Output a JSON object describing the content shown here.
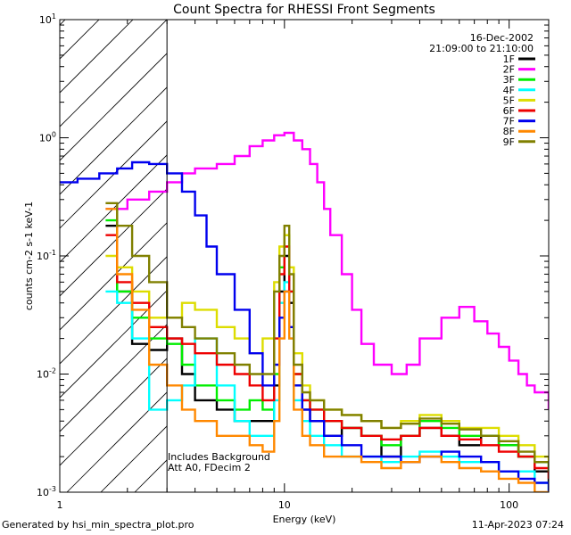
{
  "chart_data": {
    "type": "line",
    "title": "Count Spectra for RHESSI Front Segments",
    "xlabel": "Energy (keV)",
    "ylabel": "counts cm-2 s-1 keV-1",
    "xscale": "log",
    "yscale": "log",
    "xlim": [
      1,
      150
    ],
    "ylim": [
      0.001,
      10
    ],
    "x_ticks": [
      {
        "value": 1,
        "label": "1"
      },
      {
        "value": 10,
        "label": "10"
      },
      {
        "value": 100,
        "label": "100"
      }
    ],
    "y_ticks": [
      {
        "value": 0.001,
        "base": "10",
        "exp": "-3"
      },
      {
        "value": 0.01,
        "base": "10",
        "exp": "-2"
      },
      {
        "value": 0.1,
        "base": "10",
        "exp": "-1"
      },
      {
        "value": 1,
        "base": "10",
        "exp": "0"
      },
      {
        "value": 10,
        "base": "10",
        "exp": "1"
      }
    ],
    "hatched_region_keV": [
      1,
      3
    ],
    "date": "16-Dec-2002",
    "time_range": "21:09:00 to 21:10:00",
    "annotation_lines": [
      "Includes Background",
      "Att A0, FDecim 2"
    ],
    "legend_position": "top-right",
    "series": [
      {
        "name": "1F",
        "color": "#000000",
        "x": [
          1.6,
          1.8,
          2.1,
          2.5,
          3,
          3.5,
          4,
          5,
          6,
          7,
          8,
          9,
          9.5,
          10,
          10.5,
          11,
          12,
          13,
          15,
          18,
          22,
          27,
          33,
          40,
          50,
          60,
          75,
          90,
          110,
          130,
          150
        ],
        "y": [
          0.18,
          0.05,
          0.018,
          0.016,
          0.02,
          0.01,
          0.006,
          0.005,
          0.004,
          0.004,
          0.004,
          0.008,
          0.05,
          0.1,
          0.04,
          0.008,
          0.005,
          0.004,
          0.003,
          0.0035,
          0.003,
          0.002,
          0.003,
          0.0035,
          0.003,
          0.0025,
          0.003,
          0.0025,
          0.002,
          0.0015,
          0.0012
        ]
      },
      {
        "name": "2F",
        "color": "#ff00ff",
        "x": [
          1.6,
          2,
          2.5,
          3,
          3.5,
          4,
          5,
          6,
          7,
          8,
          9,
          10,
          11,
          12,
          13,
          14,
          15,
          16,
          18,
          20,
          22,
          25,
          30,
          35,
          40,
          50,
          60,
          70,
          80,
          90,
          100,
          110,
          120,
          130,
          150
        ],
        "y": [
          0.25,
          0.3,
          0.35,
          0.42,
          0.5,
          0.55,
          0.6,
          0.7,
          0.85,
          0.95,
          1.05,
          1.1,
          0.95,
          0.8,
          0.6,
          0.42,
          0.25,
          0.15,
          0.07,
          0.035,
          0.018,
          0.012,
          0.01,
          0.012,
          0.02,
          0.03,
          0.037,
          0.028,
          0.022,
          0.017,
          0.013,
          0.01,
          0.008,
          0.007,
          0.005
        ]
      },
      {
        "name": "3F",
        "color": "#00ee00",
        "x": [
          1.6,
          1.8,
          2.1,
          2.5,
          3,
          3.5,
          4,
          5,
          6,
          7,
          8,
          9,
          9.5,
          10,
          10.5,
          11,
          12,
          13,
          15,
          18,
          22,
          27,
          33,
          40,
          50,
          60,
          75,
          90,
          110,
          130,
          150
        ],
        "y": [
          0.2,
          0.05,
          0.03,
          0.02,
          0.018,
          0.012,
          0.008,
          0.006,
          0.005,
          0.006,
          0.005,
          0.01,
          0.08,
          0.15,
          0.05,
          0.01,
          0.006,
          0.005,
          0.004,
          0.0035,
          0.003,
          0.0025,
          0.003,
          0.004,
          0.0035,
          0.003,
          0.003,
          0.0025,
          0.002,
          0.0018,
          0.0015
        ]
      },
      {
        "name": "4F",
        "color": "#00ffff",
        "x": [
          1.6,
          1.8,
          2.1,
          2.5,
          3,
          3.5,
          4,
          5,
          6,
          7,
          8,
          9,
          9.5,
          10,
          10.5,
          11,
          12,
          13,
          15,
          18,
          22,
          27,
          33,
          40,
          50,
          60,
          75,
          90,
          110,
          130,
          150
        ],
        "y": [
          0.05,
          0.04,
          0.02,
          0.005,
          0.006,
          0.008,
          0.02,
          0.008,
          0.004,
          0.003,
          0.003,
          0.006,
          0.04,
          0.06,
          0.02,
          0.006,
          0.004,
          0.003,
          0.0025,
          0.002,
          0.002,
          0.0018,
          0.002,
          0.0022,
          0.002,
          0.0018,
          0.0018,
          0.0015,
          0.0015,
          0.0012,
          0.001
        ]
      },
      {
        "name": "5F",
        "color": "#dddd00",
        "x": [
          1.6,
          1.8,
          2.1,
          2.5,
          3,
          3.5,
          4,
          5,
          6,
          7,
          8,
          9,
          9.5,
          10,
          10.5,
          11,
          12,
          13,
          15,
          18,
          22,
          27,
          33,
          40,
          50,
          60,
          75,
          90,
          110,
          130,
          150
        ],
        "y": [
          0.1,
          0.08,
          0.05,
          0.03,
          0.03,
          0.04,
          0.035,
          0.025,
          0.02,
          0.015,
          0.02,
          0.06,
          0.12,
          0.15,
          0.08,
          0.015,
          0.008,
          0.006,
          0.005,
          0.0045,
          0.004,
          0.0035,
          0.004,
          0.0045,
          0.004,
          0.0035,
          0.0035,
          0.003,
          0.0025,
          0.002,
          0.0018
        ]
      },
      {
        "name": "6F",
        "color": "#ee0000",
        "x": [
          1.6,
          1.8,
          2.1,
          2.5,
          3,
          3.5,
          4,
          5,
          6,
          7,
          8,
          9,
          9.5,
          10,
          10.5,
          11,
          12,
          13,
          15,
          18,
          22,
          27,
          33,
          40,
          50,
          60,
          75,
          90,
          110,
          130,
          150
        ],
        "y": [
          0.15,
          0.06,
          0.04,
          0.025,
          0.02,
          0.018,
          0.015,
          0.012,
          0.01,
          0.008,
          0.006,
          0.02,
          0.07,
          0.12,
          0.05,
          0.01,
          0.006,
          0.005,
          0.004,
          0.0035,
          0.003,
          0.0028,
          0.003,
          0.0035,
          0.003,
          0.0028,
          0.0025,
          0.0022,
          0.002,
          0.0016,
          0.0013
        ]
      },
      {
        "name": "7F",
        "color": "#0000ee",
        "x": [
          1,
          1.2,
          1.5,
          1.8,
          2.1,
          2.5,
          3,
          3.5,
          4,
          4.5,
          5,
          6,
          7,
          8,
          9,
          9.5,
          10,
          10.5,
          11,
          12,
          13,
          15,
          18,
          22,
          27,
          33,
          40,
          50,
          60,
          75,
          90,
          110,
          130,
          150
        ],
        "y": [
          0.42,
          0.45,
          0.5,
          0.55,
          0.62,
          0.6,
          0.5,
          0.35,
          0.22,
          0.12,
          0.07,
          0.035,
          0.015,
          0.008,
          0.012,
          0.03,
          0.05,
          0.025,
          0.008,
          0.005,
          0.004,
          0.003,
          0.0025,
          0.002,
          0.002,
          0.0018,
          0.002,
          0.0022,
          0.002,
          0.0018,
          0.0015,
          0.0013,
          0.0012,
          0.001
        ]
      },
      {
        "name": "8F",
        "color": "#ff8800",
        "x": [
          1.6,
          1.8,
          2.1,
          2.5,
          3,
          3.5,
          4,
          5,
          6,
          7,
          8,
          9,
          9.5,
          10,
          10.5,
          11,
          12,
          13,
          15,
          18,
          22,
          27,
          33,
          40,
          50,
          60,
          75,
          90,
          110,
          130,
          150
        ],
        "y": [
          0.25,
          0.07,
          0.035,
          0.012,
          0.008,
          0.005,
          0.004,
          0.003,
          0.003,
          0.0025,
          0.0022,
          0.004,
          0.02,
          0.05,
          0.02,
          0.005,
          0.003,
          0.0025,
          0.002,
          0.002,
          0.0018,
          0.0016,
          0.0018,
          0.002,
          0.0018,
          0.0016,
          0.0015,
          0.0013,
          0.0012,
          0.001,
          0.001
        ]
      },
      {
        "name": "9F",
        "color": "#808000",
        "x": [
          1.6,
          1.8,
          2.1,
          2.5,
          3,
          3.5,
          4,
          5,
          6,
          7,
          8,
          9,
          9.5,
          10,
          10.5,
          11,
          12,
          13,
          15,
          18,
          22,
          27,
          33,
          40,
          50,
          60,
          75,
          90,
          110,
          130,
          150
        ],
        "y": [
          0.28,
          0.18,
          0.1,
          0.06,
          0.03,
          0.025,
          0.02,
          0.015,
          0.012,
          0.01,
          0.01,
          0.05,
          0.1,
          0.18,
          0.07,
          0.012,
          0.007,
          0.006,
          0.005,
          0.0045,
          0.004,
          0.0035,
          0.0038,
          0.0042,
          0.0038,
          0.0034,
          0.003,
          0.0027,
          0.0022,
          0.0018,
          0.0015
        ]
      }
    ]
  },
  "footer": {
    "left": "Generated by hsi_min_spectra_plot.pro",
    "right": "11-Apr-2023 07:24"
  }
}
